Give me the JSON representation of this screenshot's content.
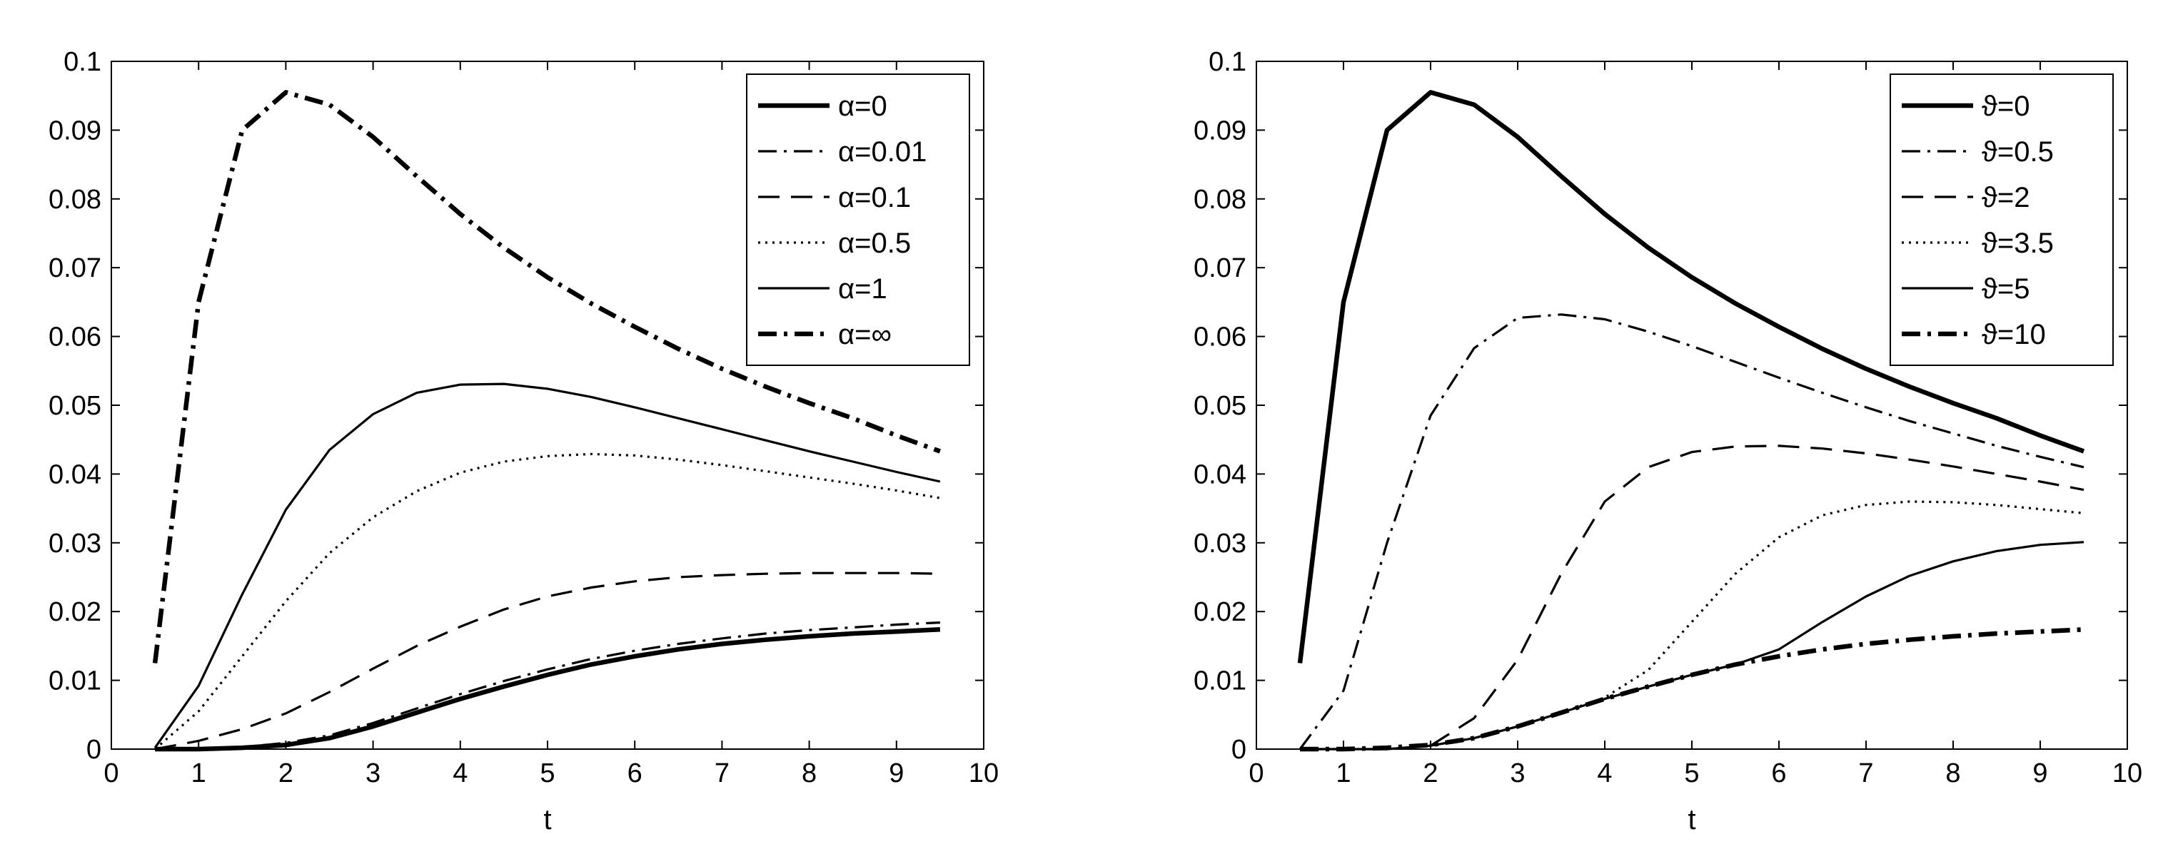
{
  "chart_data": [
    {
      "type": "line",
      "xlabel": "t",
      "ylabel": "",
      "xlim": [
        0,
        10
      ],
      "ylim": [
        0,
        0.1
      ],
      "xticks": [
        "0",
        "1",
        "2",
        "3",
        "4",
        "5",
        "6",
        "7",
        "8",
        "9",
        "10"
      ],
      "yticks": [
        "0",
        "0.01",
        "0.02",
        "0.03",
        "0.04",
        "0.05",
        "0.06",
        "0.07",
        "0.08",
        "0.09",
        "0.1"
      ],
      "grid": false,
      "legend_position": "top-right",
      "x": [
        0.5,
        1,
        1.5,
        2,
        2.5,
        3,
        3.5,
        4,
        4.5,
        5,
        5.5,
        6,
        6.5,
        7,
        7.5,
        8,
        8.5,
        9,
        9.5
      ],
      "series": [
        {
          "name": "α=0",
          "style": "thick-solid",
          "values": [
            0,
            0,
            0.0002,
            0.0006,
            0.0016,
            0.0033,
            0.0053,
            0.0073,
            0.0091,
            0.0108,
            0.0123,
            0.0135,
            0.0145,
            0.0153,
            0.0159,
            0.0164,
            0.0168,
            0.0171,
            0.0174
          ]
        },
        {
          "name": "α=0.01",
          "style": "dashdot",
          "values": [
            0,
            0.0001,
            0.0003,
            0.0009,
            0.002,
            0.0038,
            0.0059,
            0.008,
            0.0099,
            0.0116,
            0.0131,
            0.0143,
            0.0153,
            0.0161,
            0.0168,
            0.0173,
            0.0177,
            0.0181,
            0.0184
          ]
        },
        {
          "name": "α=0.1",
          "style": "dashed",
          "values": [
            0,
            0.0012,
            0.0029,
            0.0052,
            0.0083,
            0.0117,
            0.015,
            0.0178,
            0.0203,
            0.0222,
            0.0235,
            0.0244,
            0.025,
            0.0253,
            0.0255,
            0.0256,
            0.0256,
            0.0256,
            0.0255
          ]
        },
        {
          "name": "α=0.5",
          "style": "dotted",
          "values": [
            0,
            0.0055,
            0.0135,
            0.0215,
            0.0285,
            0.0337,
            0.0375,
            0.0402,
            0.0418,
            0.0426,
            0.0429,
            0.0427,
            0.0421,
            0.0413,
            0.0404,
            0.0395,
            0.0386,
            0.0376,
            0.0365
          ]
        },
        {
          "name": "α=1",
          "style": "solid",
          "values": [
            0.0002,
            0.0092,
            0.0225,
            0.0348,
            0.0435,
            0.0487,
            0.0518,
            0.053,
            0.0531,
            0.0524,
            0.0512,
            0.0497,
            0.0481,
            0.0465,
            0.0449,
            0.0433,
            0.0418,
            0.0403,
            0.0389
          ]
        },
        {
          "name": "α=∞",
          "style": "thick-dashdot",
          "values": [
            0.0125,
            0.065,
            0.09,
            0.0955,
            0.0937,
            0.089,
            0.0833,
            0.0778,
            0.0729,
            0.0686,
            0.0648,
            0.0614,
            0.0582,
            0.0553,
            0.0527,
            0.0503,
            0.0481,
            0.0456,
            0.0433
          ]
        }
      ]
    },
    {
      "type": "line",
      "xlabel": "t",
      "ylabel": "",
      "xlim": [
        0,
        10
      ],
      "ylim": [
        0,
        0.1
      ],
      "xticks": [
        "0",
        "1",
        "2",
        "3",
        "4",
        "5",
        "6",
        "7",
        "8",
        "9",
        "10"
      ],
      "yticks": [
        "0",
        "0.01",
        "0.02",
        "0.03",
        "0.04",
        "0.05",
        "0.06",
        "0.07",
        "0.08",
        "0.09",
        "0.1"
      ],
      "grid": false,
      "legend_position": "top-right",
      "x": [
        0.5,
        1,
        1.5,
        2,
        2.5,
        3,
        3.5,
        4,
        4.5,
        5,
        5.5,
        6,
        6.5,
        7,
        7.5,
        8,
        8.5,
        9,
        9.5
      ],
      "series": [
        {
          "name": "ϑ=0",
          "style": "thick-solid",
          "values": [
            0.0125,
            0.065,
            0.09,
            0.0955,
            0.0937,
            0.089,
            0.0833,
            0.0778,
            0.0729,
            0.0686,
            0.0648,
            0.0614,
            0.0582,
            0.0553,
            0.0527,
            0.0503,
            0.0481,
            0.0456,
            0.0433
          ]
        },
        {
          "name": "ϑ=0.5",
          "style": "dashdot",
          "values": [
            0,
            0.0085,
            0.03,
            0.0485,
            0.0583,
            0.0627,
            0.0632,
            0.0625,
            0.0607,
            0.0586,
            0.0563,
            0.054,
            0.0518,
            0.0497,
            0.0477,
            0.0459,
            0.0441,
            0.0425,
            0.041
          ]
        },
        {
          "name": "ϑ=2",
          "style": "dashed",
          "values": [
            0,
            0,
            0,
            0.0005,
            0.0045,
            0.013,
            0.0255,
            0.036,
            0.041,
            0.0432,
            0.044,
            0.0441,
            0.0437,
            0.043,
            0.0421,
            0.0411,
            0.04,
            0.0389,
            0.0377
          ]
        },
        {
          "name": "ϑ=3.5",
          "style": "dotted",
          "values": [
            0,
            0,
            0,
            0.0005,
            0.0016,
            0.0033,
            0.0053,
            0.0075,
            0.0115,
            0.0185,
            0.0255,
            0.0308,
            0.034,
            0.0355,
            0.036,
            0.0359,
            0.0355,
            0.0349,
            0.0343
          ]
        },
        {
          "name": "ϑ=5",
          "style": "solid",
          "values": [
            0,
            0,
            0,
            0.0005,
            0.0016,
            0.0033,
            0.0053,
            0.0073,
            0.0091,
            0.0108,
            0.0123,
            0.0145,
            0.0185,
            0.0222,
            0.0252,
            0.0273,
            0.0288,
            0.0297,
            0.0301
          ]
        },
        {
          "name": "ϑ=10",
          "style": "thick-dashdot",
          "values": [
            0,
            0,
            0.0002,
            0.0006,
            0.0016,
            0.0033,
            0.0053,
            0.0073,
            0.0091,
            0.0108,
            0.0123,
            0.0135,
            0.0145,
            0.0153,
            0.0159,
            0.0164,
            0.0168,
            0.0171,
            0.0174
          ]
        }
      ]
    }
  ]
}
